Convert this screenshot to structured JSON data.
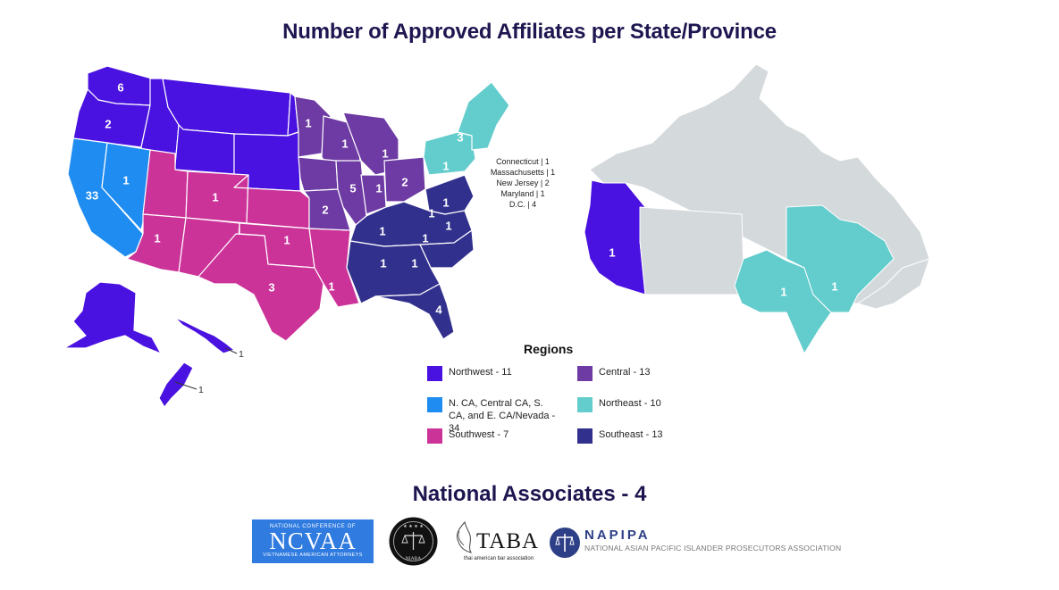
{
  "title": "Number of Approved Affiliates per State/Province",
  "colors": {
    "northwest": "#4a12e0",
    "california_nevada": "#1e8cf0",
    "southwest": "#cc3399",
    "central": "#6e3ba4",
    "northeast": "#63cccc",
    "southeast": "#32308d",
    "canada_other": "#d4d9dc",
    "border": "#ffffff"
  },
  "state_counts": {
    "washington": "6",
    "oregon": "2",
    "california": "33",
    "nevada": "1",
    "utah": "1",
    "arizona": "1",
    "colorado": "1",
    "oklahoma": "1",
    "texas": "3",
    "louisiana": "1",
    "minnesota": "1",
    "wisconsin": "1",
    "michigan": "1",
    "iowa": "2",
    "illinois": "5",
    "indiana": "1",
    "ohio": "2",
    "new_york": "1",
    "maine_region": "3",
    "virginia": "1",
    "kentucky": "1",
    "north_carolina": "1",
    "tennessee": "1",
    "mississippi": "1",
    "alabama": "1",
    "georgia": "1",
    "florida": "4",
    "alaska_note": "",
    "hawaii": "1",
    "guam": "1",
    "british_columbia": "1",
    "ontario": "1",
    "quebec": "1"
  },
  "northeast_list": [
    "Connecticut | 1",
    "Massachusetts | 1",
    "New Jersey | 2",
    "Maryland | 1",
    "D.C. | 4"
  ],
  "legend": {
    "title": "Regions",
    "items": [
      {
        "label": "Northwest - 11",
        "color": "#4a12e0"
      },
      {
        "label": "N. CA, Central CA, S. CA, and E. CA/Nevada - 34",
        "color": "#1e8cf0"
      },
      {
        "label": "Southwest - 7",
        "color": "#cc3399"
      },
      {
        "label": "Central - 13",
        "color": "#6e3ba4"
      },
      {
        "label": "Northeast - 10",
        "color": "#63cccc"
      },
      {
        "label": "Southeast - 13",
        "color": "#32308d"
      }
    ]
  },
  "associates": {
    "title": "National Associates - 4",
    "ncvaa": {
      "top": "NATIONAL CONFERENCE OF",
      "name": "NCVAA",
      "bottom": "VIETNAMESE AMERICAN ATTORNEYS"
    },
    "niaba": {
      "name": "NIABA"
    },
    "taba": {
      "name": "TABA",
      "sub": "thai american bar association"
    },
    "napipa": {
      "name": "NAPIPA",
      "full": "NATIONAL ASIAN PACIFIC ISLANDER PROSECUTORS ASSOCIATION"
    }
  }
}
